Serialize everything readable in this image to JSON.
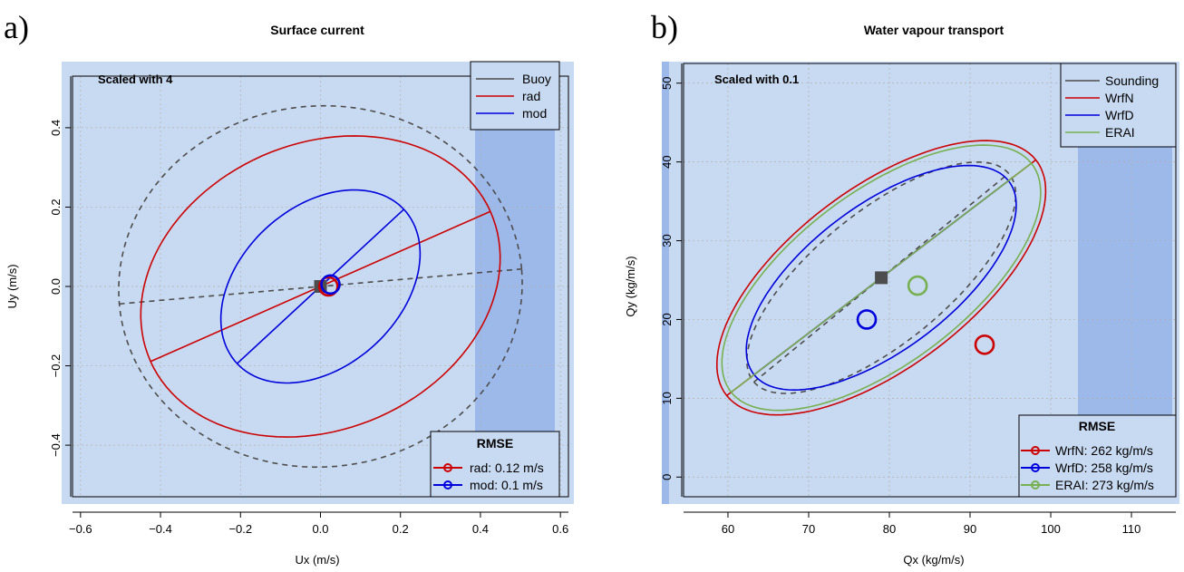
{
  "chart_data": [
    {
      "panel_label": "a)",
      "type": "scatter",
      "title": "Surface current",
      "xlabel": "Ux (m/s)",
      "ylabel": "Uy (m/s)",
      "xlim": [
        -0.62,
        0.62
      ],
      "ylim": [
        -0.53,
        0.53
      ],
      "xticks": [
        -0.6,
        -0.4,
        -0.2,
        0.0,
        0.2,
        0.4,
        0.6
      ],
      "xtick_labels": [
        "−0.6",
        "−0.4",
        "−0.2",
        "0.0",
        "0.2",
        "0.4",
        "0.6"
      ],
      "yticks": [
        -0.4,
        -0.2,
        0.0,
        0.2,
        0.4
      ],
      "ytick_labels": [
        "−0.4",
        "−0.2",
        "0.0",
        "0.2",
        "0.4"
      ],
      "grid": true,
      "annotation": "Scaled with 4",
      "legend": {
        "placement": "top-right",
        "entries": [
          "Buoy",
          "rad",
          "mod"
        ]
      },
      "rmse_legend": {
        "placement": "bottom-right",
        "title": "RMSE",
        "entries": [
          "rad: 0.12 m/s",
          "mod: 0.1 m/s"
        ]
      },
      "center": [
        0.0,
        0.0
      ],
      "series": [
        {
          "name": "Buoy",
          "color": "#4d4d4d",
          "dashed": true,
          "ellipse": {
            "cx": 0.0,
            "cy": 0.0,
            "a": 0.505,
            "b": 0.455,
            "angle_deg": 5
          },
          "marker": {
            "x": 0.0,
            "y": 0.0,
            "shape": "square"
          }
        },
        {
          "name": "rad",
          "color": "#cc0000",
          "dashed": false,
          "ellipse": {
            "cx": 0.0,
            "cy": 0.0,
            "a": 0.465,
            "b": 0.36,
            "angle_deg": 24
          },
          "marker": {
            "x": 0.02,
            "y": 0.0,
            "shape": "circle"
          }
        },
        {
          "name": "mod",
          "color": "#0000dd",
          "dashed": false,
          "ellipse": {
            "cx": 0.0,
            "cy": 0.0,
            "a": 0.285,
            "b": 0.2,
            "angle_deg": 43
          },
          "marker": {
            "x": 0.025,
            "y": 0.005,
            "shape": "circle"
          }
        }
      ]
    },
    {
      "panel_label": "b)",
      "type": "scatter",
      "title": "Water vapour transport",
      "xlabel": "Qx (kg/m/s)",
      "ylabel": "Qy (kg/m/s)",
      "xlim": [
        54.5,
        115.5
      ],
      "ylim": [
        -2.5,
        52.5
      ],
      "xticks": [
        60,
        70,
        80,
        90,
        100,
        110
      ],
      "xtick_labels": [
        "60",
        "70",
        "80",
        "90",
        "100",
        "110"
      ],
      "yticks": [
        0,
        10,
        20,
        30,
        40,
        50
      ],
      "ytick_labels": [
        "0",
        "10",
        "20",
        "30",
        "40",
        "50"
      ],
      "grid": true,
      "annotation": "Scaled with 0.1",
      "legend": {
        "placement": "top-right",
        "entries": [
          "Sounding",
          "WrfN",
          "WrfD",
          "ERAI"
        ]
      },
      "rmse_legend": {
        "placement": "bottom-right",
        "title": "RMSE",
        "entries": [
          "WrfN: 262 kg/m/s",
          "WrfD: 258 kg/m/s",
          "ERAI: 273 kg/m/s"
        ]
      },
      "center": [
        79.0,
        25.3
      ],
      "series": [
        {
          "name": "Sounding",
          "color": "#4d4d4d",
          "dashed": true,
          "ellipse": {
            "cx": 79.0,
            "cy": 25.3,
            "a": 20.6,
            "b": 8.3,
            "angle_deg": 40
          },
          "marker": {
            "x": 79.0,
            "y": 25.3,
            "shape": "square"
          }
        },
        {
          "name": "WrfN",
          "color": "#cc0000",
          "dashed": false,
          "ellipse": {
            "cx": 79.0,
            "cy": 25.3,
            "a": 24.3,
            "b": 11.3,
            "angle_deg": 38
          },
          "marker": {
            "x": 91.8,
            "y": 16.8,
            "shape": "circle"
          }
        },
        {
          "name": "WrfD",
          "color": "#0000dd",
          "dashed": false,
          "ellipse": {
            "cx": 79.0,
            "cy": 25.3,
            "a": 20.0,
            "b": 9.1,
            "angle_deg": 38
          },
          "marker": {
            "x": 77.2,
            "y": 20.0,
            "shape": "circle"
          }
        },
        {
          "name": "ERAI",
          "color": "#77b050",
          "dashed": false,
          "ellipse": {
            "cx": 79.0,
            "cy": 25.3,
            "a": 23.6,
            "b": 10.8,
            "angle_deg": 38
          },
          "marker": {
            "x": 83.5,
            "y": 24.3,
            "shape": "circle"
          }
        }
      ]
    }
  ]
}
